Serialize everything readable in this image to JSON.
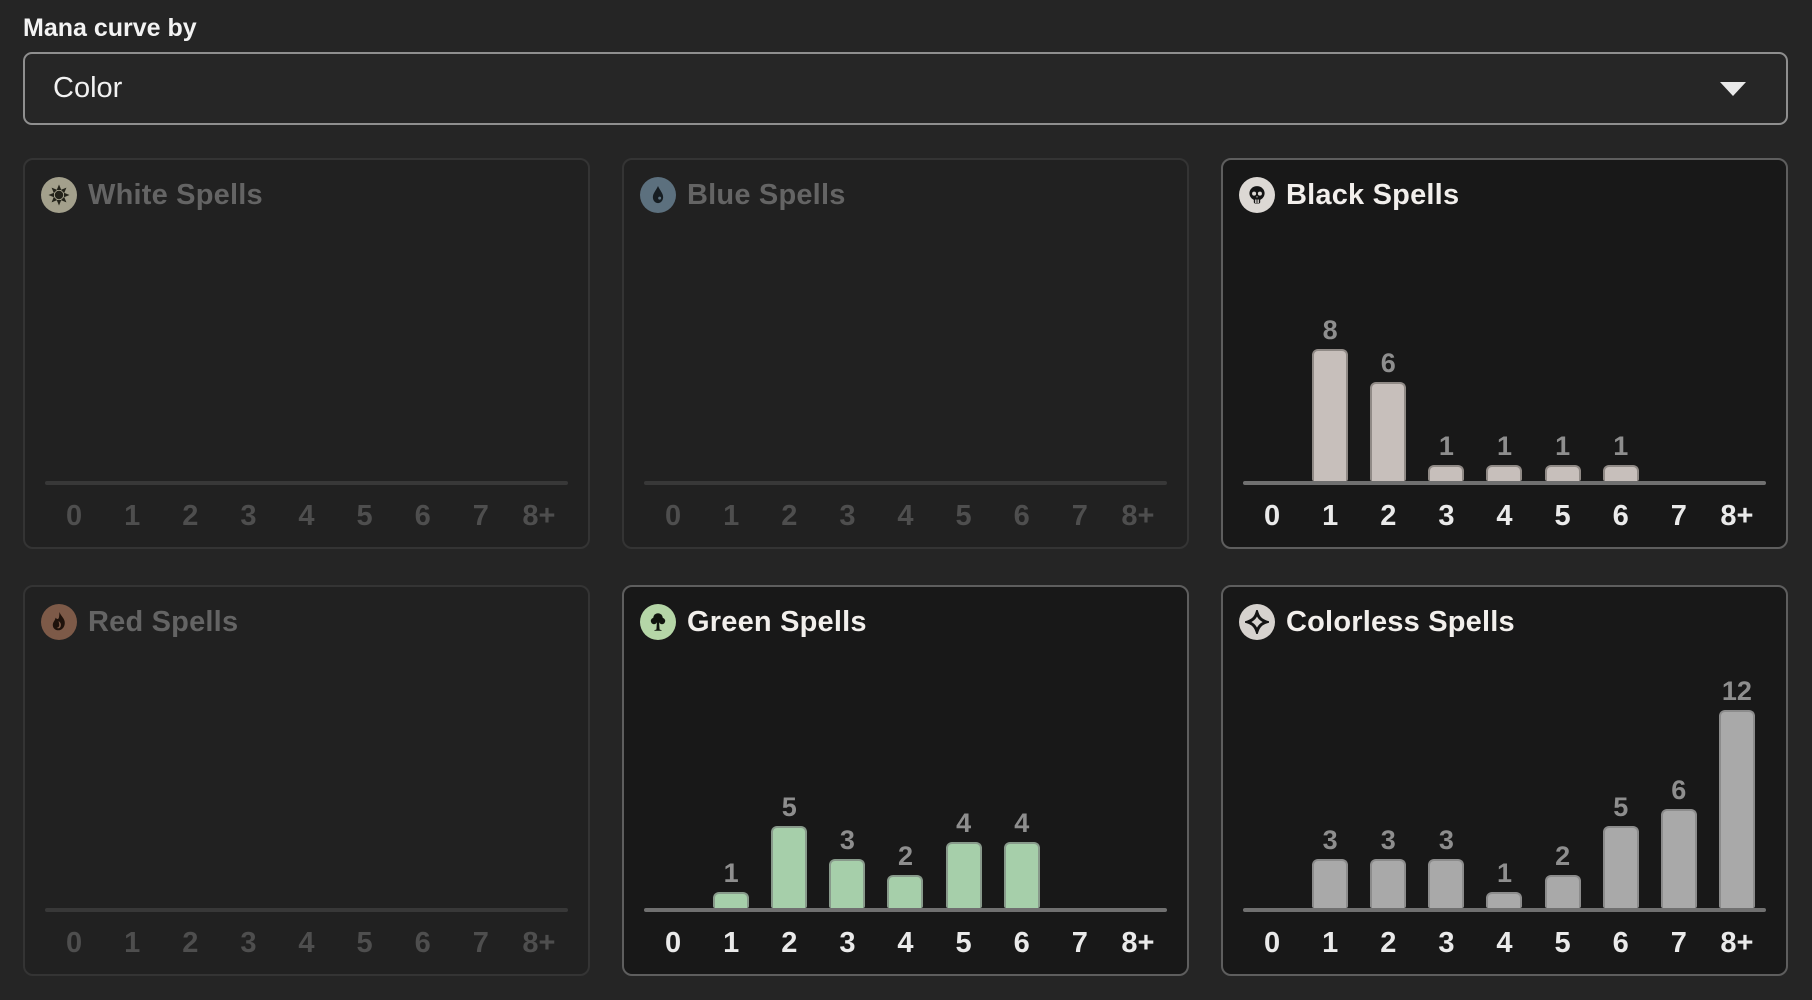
{
  "controls": {
    "label": "Mana curve by",
    "selected_option": "Color",
    "dropdown_icon": "chevron-down-icon"
  },
  "x_labels": [
    "0",
    "1",
    "2",
    "3",
    "4",
    "5",
    "6",
    "7",
    "8+"
  ],
  "panels": [
    {
      "key": "white",
      "title": "White Spells",
      "icon": "white-mana-icon",
      "active": false,
      "icon_bg": "#a3a08c",
      "glyph": "#23231a",
      "bar_fill": null,
      "bar_border": null
    },
    {
      "key": "blue",
      "title": "Blue Spells",
      "icon": "blue-mana-icon",
      "active": false,
      "icon_bg": "#5c707e",
      "glyph": "#161d22",
      "bar_fill": null,
      "bar_border": null
    },
    {
      "key": "black",
      "title": "Black Spells",
      "icon": "black-mana-icon",
      "active": true,
      "icon_bg": "#dcd8d4",
      "glyph": "#141414",
      "bar_fill": "#c7bfbb",
      "bar_border": "#908a86"
    },
    {
      "key": "red",
      "title": "Red Spells",
      "icon": "red-mana-icon",
      "active": false,
      "icon_bg": "#7d5a48",
      "glyph": "#1e120b",
      "bar_fill": null,
      "bar_border": null
    },
    {
      "key": "green",
      "title": "Green Spells",
      "icon": "green-mana-icon",
      "active": true,
      "icon_bg": "#b5d6a7",
      "glyph": "#0f140d",
      "bar_fill": "#a6cfaa",
      "bar_border": "#889a8b"
    },
    {
      "key": "colorless",
      "title": "Colorless Spells",
      "icon": "colorless-mana-icon",
      "active": true,
      "icon_bg": "#d6d2ce",
      "glyph": "#141414",
      "bar_fill": "#a9a9a9",
      "bar_border": "#8c8c8c"
    }
  ],
  "chart_data": [
    {
      "type": "bar",
      "title": "White Spells",
      "categories": [
        "0",
        "1",
        "2",
        "3",
        "4",
        "5",
        "6",
        "7",
        "8+"
      ],
      "values": [
        0,
        0,
        0,
        0,
        0,
        0,
        0,
        0,
        0
      ],
      "ylim": [
        0,
        12
      ],
      "grid": false
    },
    {
      "type": "bar",
      "title": "Blue Spells",
      "categories": [
        "0",
        "1",
        "2",
        "3",
        "4",
        "5",
        "6",
        "7",
        "8+"
      ],
      "values": [
        0,
        0,
        0,
        0,
        0,
        0,
        0,
        0,
        0
      ],
      "ylim": [
        0,
        12
      ],
      "grid": false
    },
    {
      "type": "bar",
      "title": "Black Spells",
      "categories": [
        "0",
        "1",
        "2",
        "3",
        "4",
        "5",
        "6",
        "7",
        "8+"
      ],
      "values": [
        0,
        8,
        6,
        1,
        1,
        1,
        1,
        0,
        0
      ],
      "ylim": [
        0,
        12
      ],
      "grid": false
    },
    {
      "type": "bar",
      "title": "Red Spells",
      "categories": [
        "0",
        "1",
        "2",
        "3",
        "4",
        "5",
        "6",
        "7",
        "8+"
      ],
      "values": [
        0,
        0,
        0,
        0,
        0,
        0,
        0,
        0,
        0
      ],
      "ylim": [
        0,
        12
      ],
      "grid": false
    },
    {
      "type": "bar",
      "title": "Green Spells",
      "categories": [
        "0",
        "1",
        "2",
        "3",
        "4",
        "5",
        "6",
        "7",
        "8+"
      ],
      "values": [
        0,
        1,
        5,
        3,
        2,
        4,
        4,
        0,
        0
      ],
      "ylim": [
        0,
        12
      ],
      "grid": false
    },
    {
      "type": "bar",
      "title": "Colorless Spells",
      "categories": [
        "0",
        "1",
        "2",
        "3",
        "4",
        "5",
        "6",
        "7",
        "8+"
      ],
      "values": [
        0,
        3,
        3,
        3,
        1,
        2,
        5,
        6,
        12
      ],
      "ylim": [
        0,
        12
      ],
      "grid": false
    }
  ],
  "colors": {
    "page_background": "#252525",
    "active_panel_background": "#181818",
    "inactive_panel_background": "#212121",
    "active_panel_border": "#5e5e5e",
    "inactive_panel_border": "#343434",
    "axis_active": "#707070",
    "axis_inactive": "#383838",
    "value_label": "#8e8e8e",
    "black_bar": "#c7bfbb",
    "green_bar": "#a6cfaa",
    "colorless_bar": "#a9a9a9"
  }
}
